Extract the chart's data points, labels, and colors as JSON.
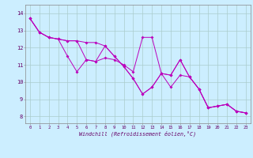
{
  "xlabel": "Windchill (Refroidissement éolien,°C)",
  "bg_color": "#cceeff",
  "line_color": "#bb00bb",
  "grid_color": "#aacccc",
  "tick_color": "#660066",
  "x_ticks": [
    0,
    1,
    2,
    3,
    4,
    5,
    6,
    7,
    8,
    9,
    10,
    11,
    12,
    13,
    14,
    15,
    16,
    17,
    18,
    19,
    20,
    21,
    22,
    23
  ],
  "y_ticks": [
    8,
    9,
    10,
    11,
    12,
    13,
    14
  ],
  "xlim": [
    -0.5,
    23.5
  ],
  "ylim": [
    7.6,
    14.5
  ],
  "series": [
    [
      13.7,
      12.9,
      12.6,
      12.5,
      11.5,
      10.6,
      11.3,
      11.2,
      12.1,
      11.5,
      10.9,
      10.2,
      9.3,
      9.7,
      10.5,
      10.4,
      11.3,
      10.3,
      9.6,
      8.5,
      8.6,
      8.7,
      8.3,
      8.2
    ],
    [
      13.7,
      12.9,
      12.6,
      12.5,
      12.4,
      12.4,
      11.3,
      11.2,
      11.4,
      11.3,
      11.0,
      10.6,
      12.6,
      12.6,
      10.5,
      9.7,
      10.4,
      10.3,
      9.6,
      8.5,
      8.6,
      8.7,
      8.3,
      8.2
    ],
    [
      13.7,
      12.9,
      12.6,
      12.5,
      12.4,
      12.4,
      12.3,
      12.3,
      12.1,
      11.5,
      10.9,
      10.2,
      9.3,
      9.7,
      10.5,
      10.4,
      11.3,
      10.3,
      9.6,
      8.5,
      8.6,
      8.7,
      8.3,
      8.2
    ]
  ],
  "tick_fontsize": 4.0,
  "xlabel_fontsize": 4.8,
  "linewidth": 0.7,
  "markersize": 2.0
}
